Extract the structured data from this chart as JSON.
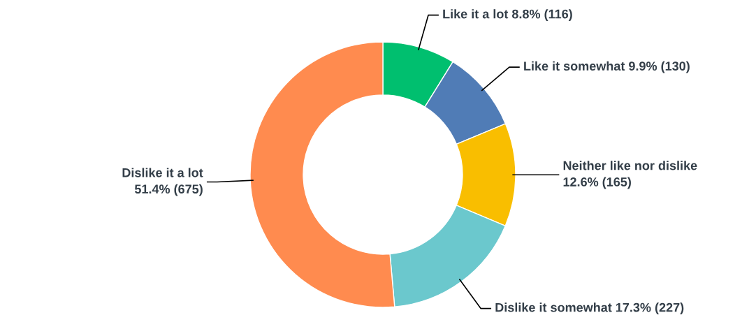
{
  "chart_data": {
    "type": "donut",
    "categories": [
      "Like it a lot",
      "Like it somewhat",
      "Neither like nor dislike",
      "Dislike it somewhat",
      "Dislike it a lot"
    ],
    "values": [
      116,
      130,
      165,
      227,
      675
    ],
    "value_labels": [
      "8.8% (116)",
      "9.9% (130)",
      "12.6% (165)",
      "17.3% (227)",
      "51.4% (675)"
    ],
    "colors": [
      "#00bf6f",
      "#507cb6",
      "#f9be00",
      "#6bc8cd",
      "#ff8b4f"
    ],
    "legend": false
  }
}
